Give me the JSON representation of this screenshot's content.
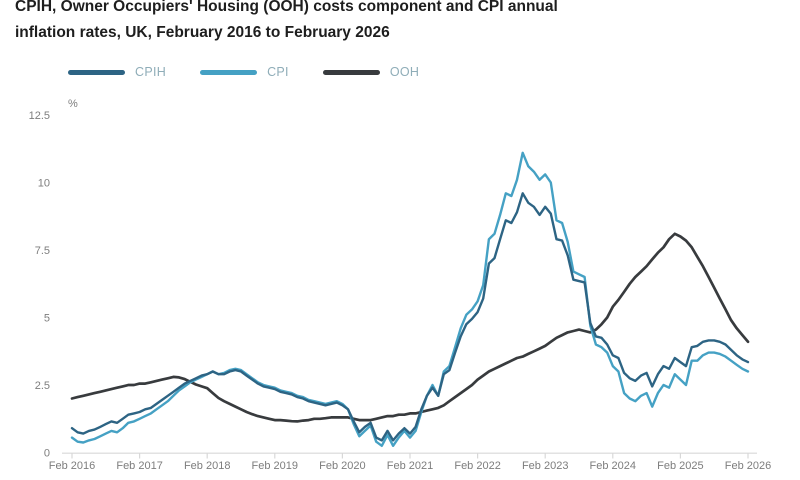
{
  "header": {
    "title_line1": "CPIH, Owner Occupiers' Housing (OOH) costs component and CPI annual",
    "title_line2": "inflation rates, UK, February 2016 to February 2026"
  },
  "chart_data": {
    "type": "line",
    "title": "CPIH, Owner Occupiers' Housing (OOH) costs component and CPI annual inflation rates, UK, February 2016 to February 2026",
    "unit_label": "%",
    "x_interval": "monthly",
    "x_start": "Feb 2016",
    "x_end": "Feb 2026",
    "x_tick_labels": [
      "Feb 2016",
      "Feb 2017",
      "Feb 2018",
      "Feb 2019",
      "Feb 2020",
      "Feb 2021",
      "Feb 2022",
      "Feb 2023",
      "Feb 2024",
      "Feb 2025",
      "Feb 2026"
    ],
    "y_ticks": [
      0,
      2.5,
      5,
      7.5,
      10,
      12.5
    ],
    "y_tick_labels": [
      "0",
      "2.5",
      "5",
      "7.5",
      "10",
      "12.5"
    ],
    "ylim": [
      0,
      12.5
    ],
    "grid": false,
    "legend_position": "top-left",
    "axis_color": "#d8d8d8",
    "series": [
      {
        "name": "CPIH",
        "color": "#2d6484",
        "values": [
          0.9,
          0.75,
          0.7,
          0.8,
          0.85,
          0.95,
          1.05,
          1.15,
          1.1,
          1.25,
          1.4,
          1.45,
          1.5,
          1.6,
          1.65,
          1.8,
          1.95,
          2.1,
          2.25,
          2.4,
          2.55,
          2.65,
          2.75,
          2.85,
          2.9,
          3.0,
          2.9,
          2.9,
          3.0,
          3.05,
          3.0,
          2.85,
          2.7,
          2.55,
          2.45,
          2.4,
          2.35,
          2.25,
          2.2,
          2.15,
          2.05,
          2.0,
          1.9,
          1.85,
          1.8,
          1.75,
          1.8,
          1.85,
          1.75,
          1.6,
          1.15,
          0.75,
          0.95,
          1.1,
          0.55,
          0.45,
          0.8,
          0.45,
          0.7,
          0.9,
          0.7,
          0.95,
          1.6,
          2.1,
          2.4,
          2.1,
          2.9,
          3.05,
          3.7,
          4.3,
          4.75,
          4.95,
          5.2,
          5.7,
          7.0,
          7.2,
          7.9,
          8.6,
          8.5,
          8.9,
          9.6,
          9.25,
          9.1,
          8.8,
          9.1,
          8.85,
          7.9,
          7.85,
          7.3,
          6.4,
          6.35,
          6.3,
          4.8,
          4.3,
          4.25,
          4.0,
          3.6,
          3.5,
          2.95,
          2.75,
          2.65,
          2.85,
          2.95,
          2.45,
          2.9,
          3.2,
          3.1,
          3.5,
          3.35,
          3.2,
          3.9,
          3.95,
          4.1,
          4.15,
          4.15,
          4.1,
          4.0,
          3.8,
          3.6,
          3.45,
          3.35
        ]
      },
      {
        "name": "CPI",
        "color": "#45a1c4",
        "values": [
          0.55,
          0.4,
          0.37,
          0.45,
          0.5,
          0.6,
          0.7,
          0.8,
          0.75,
          0.9,
          1.1,
          1.15,
          1.25,
          1.35,
          1.45,
          1.6,
          1.75,
          1.9,
          2.1,
          2.3,
          2.45,
          2.6,
          2.7,
          2.8,
          2.9,
          3.0,
          2.9,
          2.95,
          3.05,
          3.1,
          3.05,
          2.9,
          2.75,
          2.6,
          2.5,
          2.45,
          2.4,
          2.3,
          2.25,
          2.2,
          2.1,
          2.05,
          1.95,
          1.9,
          1.85,
          1.8,
          1.85,
          1.9,
          1.8,
          1.6,
          1.05,
          0.6,
          0.8,
          1.0,
          0.4,
          0.25,
          0.65,
          0.25,
          0.55,
          0.8,
          0.55,
          0.8,
          1.5,
          2.1,
          2.5,
          2.1,
          3.0,
          3.2,
          3.9,
          4.6,
          5.1,
          5.3,
          5.6,
          6.2,
          7.9,
          8.1,
          8.8,
          9.6,
          9.5,
          10.1,
          11.1,
          10.6,
          10.4,
          10.1,
          10.3,
          10.0,
          8.6,
          8.5,
          7.8,
          6.7,
          6.6,
          6.5,
          4.7,
          4.0,
          3.9,
          3.7,
          3.2,
          3.0,
          2.2,
          2.0,
          1.9,
          2.1,
          2.2,
          1.7,
          2.2,
          2.5,
          2.4,
          2.9,
          2.7,
          2.5,
          3.4,
          3.4,
          3.6,
          3.7,
          3.7,
          3.65,
          3.55,
          3.4,
          3.25,
          3.1,
          3.0
        ]
      },
      {
        "name": "OOH",
        "color": "#383b3e",
        "values": [
          2.0,
          2.05,
          2.1,
          2.15,
          2.2,
          2.25,
          2.3,
          2.35,
          2.4,
          2.45,
          2.5,
          2.5,
          2.55,
          2.55,
          2.6,
          2.65,
          2.7,
          2.75,
          2.8,
          2.78,
          2.72,
          2.62,
          2.52,
          2.45,
          2.38,
          2.2,
          2.02,
          1.9,
          1.8,
          1.7,
          1.6,
          1.5,
          1.42,
          1.35,
          1.3,
          1.25,
          1.2,
          1.2,
          1.18,
          1.16,
          1.15,
          1.18,
          1.2,
          1.25,
          1.25,
          1.27,
          1.3,
          1.3,
          1.3,
          1.3,
          1.25,
          1.2,
          1.2,
          1.2,
          1.25,
          1.3,
          1.35,
          1.35,
          1.4,
          1.4,
          1.45,
          1.45,
          1.5,
          1.55,
          1.6,
          1.65,
          1.75,
          1.9,
          2.05,
          2.2,
          2.35,
          2.5,
          2.7,
          2.85,
          3.0,
          3.1,
          3.2,
          3.3,
          3.4,
          3.5,
          3.55,
          3.65,
          3.75,
          3.85,
          3.95,
          4.1,
          4.25,
          4.35,
          4.45,
          4.5,
          4.55,
          4.5,
          4.45,
          4.55,
          4.75,
          5.0,
          5.4,
          5.65,
          5.95,
          6.25,
          6.5,
          6.7,
          6.9,
          7.15,
          7.4,
          7.6,
          7.9,
          8.1,
          8.0,
          7.85,
          7.6,
          7.25,
          6.9,
          6.5,
          6.1,
          5.7,
          5.3,
          4.9,
          4.6,
          4.35,
          4.1
        ]
      }
    ]
  }
}
